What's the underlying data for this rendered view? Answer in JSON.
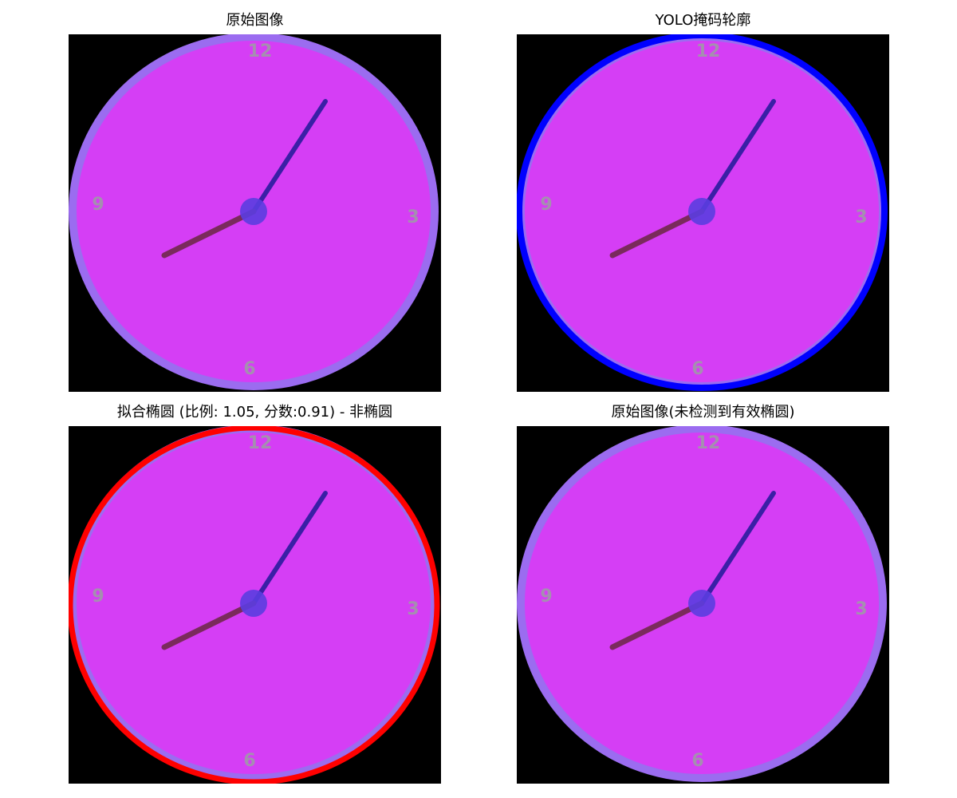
{
  "figure": {
    "panels": [
      {
        "title": "原始图像",
        "overlay": "none",
        "overlay_color": ""
      },
      {
        "title": "YOLO掩码轮廓",
        "overlay": "mask-contour",
        "overlay_color": "#0000ff"
      },
      {
        "title": "拟合椭圆 (比例: 1.05, 分数:0.91) - 非椭圆",
        "overlay": "fitted-ellipse",
        "overlay_color": "#ff0000"
      },
      {
        "title": "原始图像(未检测到有效椭圆)",
        "overlay": "none",
        "overlay_color": ""
      }
    ]
  },
  "clock": {
    "numerals": {
      "top": "12",
      "right": "3",
      "bottom": "6",
      "left": "9"
    },
    "face_color": "#d53ef5",
    "rim_color": "#9b6cf0",
    "minute_hand_color": "#3a1fa6",
    "hour_hand_color": "#7a2a5c",
    "hub_color": "#5b3de0",
    "numeral_color": "#a58fb0",
    "background_color": "#000000"
  }
}
